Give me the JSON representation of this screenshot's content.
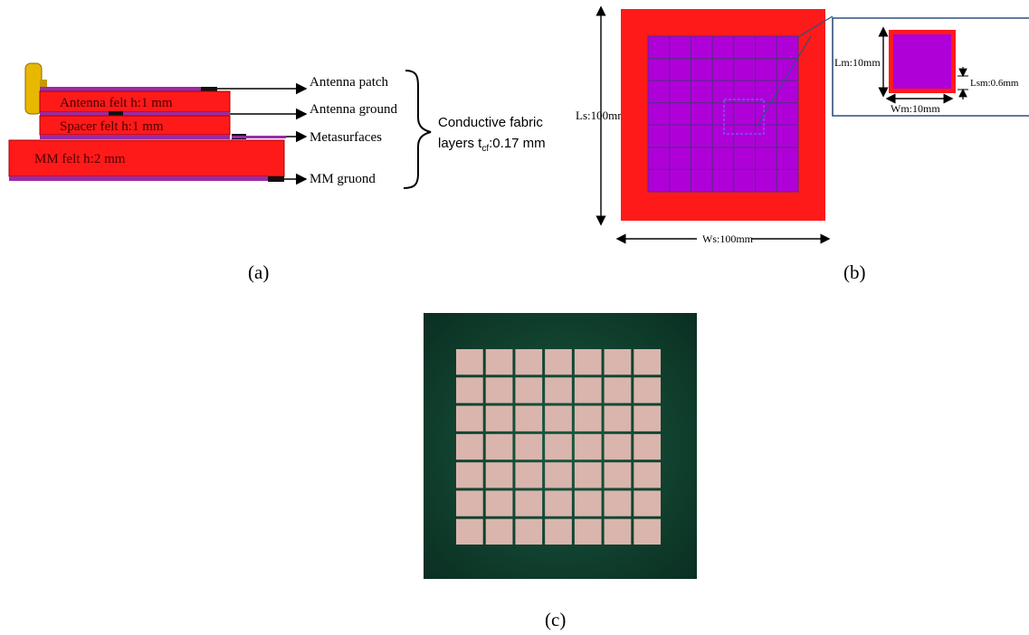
{
  "panel_a": {
    "layers": {
      "antenna_felt": "Antenna  felt h:1 mm",
      "spacer_felt": "Spacer  felt h:1 mm",
      "mm_felt": "MM felt h:2 mm"
    },
    "callouts": {
      "antenna_patch": "Antenna patch",
      "antenna_ground": "Antenna ground",
      "metasurfaces": "Metasurfaces",
      "mm_ground": "MM gruond"
    },
    "brace_label_line1": "Conductive fabric",
    "brace_label_line2_prefix": "layers  t",
    "brace_label_sub": "cf",
    "brace_label_line2_suffix": ":0.17 mm",
    "caption": "(a)"
  },
  "panel_b": {
    "ls_label": "Ls:100mm",
    "ws_label": "Ws:100mm",
    "lm_label": "Lm:10mm",
    "wm_label": "Wm:10mm",
    "lsm_label": "Lsm:0.6mm",
    "grid_rows": 7,
    "grid_cols": 7,
    "colors": {
      "substrate": "#ff1a1a",
      "cell": "#b000d8",
      "cell_border": "#5a2a8a",
      "zoom_frame": "#2f4f7f"
    },
    "caption": "(b)"
  },
  "panel_c": {
    "grid_rows": 7,
    "grid_cols": 7,
    "colors": {
      "fabric": "#0e3d2c",
      "tile": "#d9b5ad"
    },
    "caption": "(c)"
  }
}
